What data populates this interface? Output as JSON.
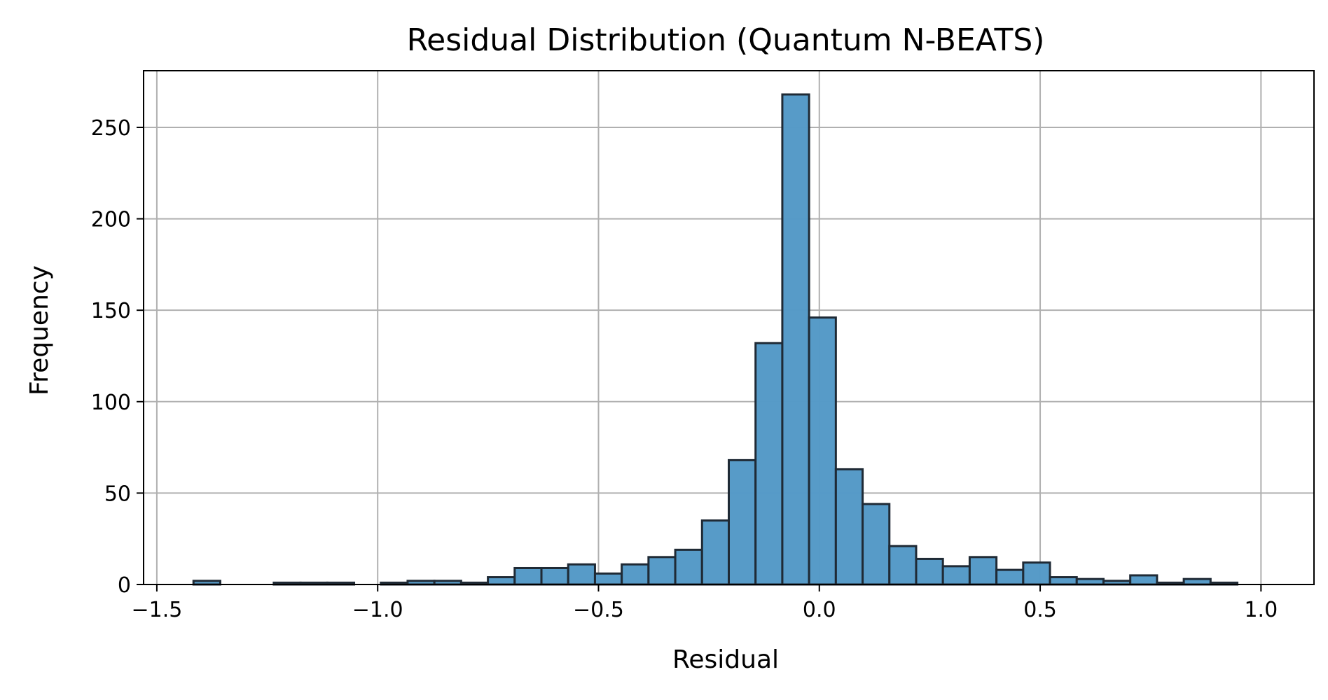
{
  "chart_data": {
    "type": "bar",
    "title": "Residual Distribution (Quantum N-BEATS)",
    "xlabel": "Residual",
    "ylabel": "Frequency",
    "xlim": [
      -1.53,
      1.12
    ],
    "ylim": [
      0,
      281
    ],
    "xticks": [
      -1.5,
      -1.0,
      -0.5,
      0.0,
      0.5,
      1.0
    ],
    "xtick_labels": [
      "−1.5",
      "−1.0",
      "−0.5",
      "0.0",
      "0.5",
      "1.0"
    ],
    "yticks": [
      0,
      50,
      100,
      150,
      200,
      250
    ],
    "ytick_labels": [
      "0",
      "50",
      "100",
      "150",
      "200",
      "250"
    ],
    "grid": true,
    "bar_color": "#5499c7",
    "bar_edge_color": "#1f2a35",
    "bin_edges": [
      -1.417,
      -1.3564,
      -1.2958,
      -1.2352,
      -1.1746,
      -1.114,
      -1.0534,
      -0.9928,
      -0.9322,
      -0.8716,
      -0.811,
      -0.7504,
      -0.6898,
      -0.6292,
      -0.5686,
      -0.508,
      -0.4474,
      -0.3868,
      -0.3262,
      -0.2656,
      -0.205,
      -0.1444,
      -0.0838,
      -0.0232,
      0.0374,
      0.098,
      0.1586,
      0.2192,
      0.2798,
      0.3404,
      0.401,
      0.4616,
      0.5222,
      0.5828,
      0.6434,
      0.704,
      0.7646,
      0.8252,
      0.8858,
      0.9464,
      1.007
    ],
    "values": [
      2,
      0,
      0,
      1,
      1,
      1,
      0,
      1,
      2,
      2,
      1,
      4,
      9,
      9,
      11,
      6,
      11,
      15,
      19,
      35,
      68,
      132,
      268,
      146,
      63,
      44,
      21,
      14,
      10,
      15,
      8,
      12,
      4,
      3,
      2,
      5,
      1,
      3,
      1,
      0
    ]
  }
}
